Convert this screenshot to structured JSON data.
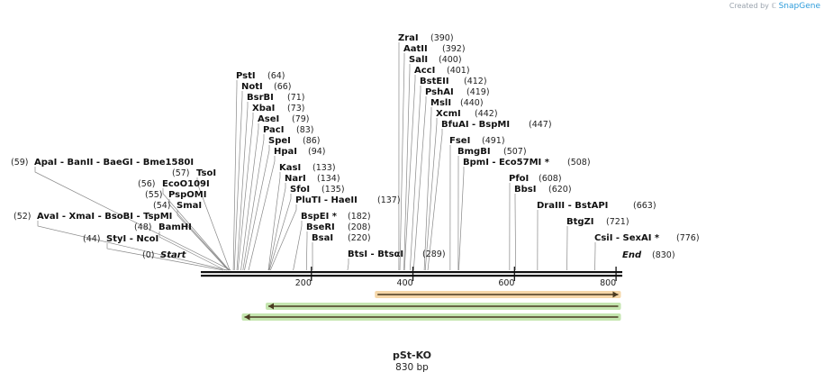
{
  "credit": {
    "prefix": "Created by",
    "brand": "SnapGene"
  },
  "map": {
    "name": "pSt-KO",
    "length_label": "830 bp",
    "length": 830,
    "start_label": "Start",
    "end_label": "End",
    "start_pos": "(0)",
    "end_pos": "(830)",
    "ticks": [
      "200",
      "400",
      "600",
      "800"
    ],
    "tick_values": [
      200,
      400,
      600,
      800
    ]
  },
  "sites": [
    {
      "text": "StyI  - NcoI",
      "pos": "(44)",
      "bp": 44
    },
    {
      "text": "BamHI",
      "pos": "(48)",
      "bp": 48
    },
    {
      "text": "AvaI  - XmaI  - BsoBI  - TspMI",
      "pos": "(52)",
      "bp": 52
    },
    {
      "text": "SmaI",
      "pos": "(54)",
      "bp": 54
    },
    {
      "text": "PspOMI",
      "pos": "(55)",
      "bp": 55
    },
    {
      "text": "EcoO109I",
      "pos": "(56)",
      "bp": 56
    },
    {
      "text": "TsoI",
      "pos": "(57)",
      "bp": 57
    },
    {
      "text": "ApaI  - BanII  - BaeGI  - Bme1580I",
      "pos": "(59)",
      "bp": 59
    },
    {
      "text": "PstI",
      "pos": "(64)",
      "bp": 64
    },
    {
      "text": "NotI",
      "pos": "(66)",
      "bp": 66
    },
    {
      "text": "BsrBI",
      "pos": "(71)",
      "bp": 71
    },
    {
      "text": "XbaI",
      "pos": "(73)",
      "bp": 73
    },
    {
      "text": "AseI",
      "pos": "(79)",
      "bp": 79
    },
    {
      "text": "PacI",
      "pos": "(83)",
      "bp": 83
    },
    {
      "text": "SpeI",
      "pos": "(86)",
      "bp": 86
    },
    {
      "text": "HpaI",
      "pos": "(94)",
      "bp": 94
    },
    {
      "text": "KasI",
      "pos": "(133)",
      "bp": 133
    },
    {
      "text": "NarI",
      "pos": "(134)",
      "bp": 134
    },
    {
      "text": "SfoI",
      "pos": "(135)",
      "bp": 135
    },
    {
      "text": "PluTI  - HaeII",
      "pos": "(137)",
      "bp": 137
    },
    {
      "text": "BspEI *",
      "pos": "(182)",
      "bp": 182
    },
    {
      "text": "BseRI",
      "pos": "(208)",
      "bp": 208
    },
    {
      "text": "BsaI",
      "pos": "(220)",
      "bp": 220
    },
    {
      "text": "BtsI  - BtsαI",
      "pos": "(289)",
      "bp": 289
    },
    {
      "text": "ZraI",
      "pos": "(390)",
      "bp": 390
    },
    {
      "text": "AatII",
      "pos": "(392)",
      "bp": 392
    },
    {
      "text": "SalI",
      "pos": "(400)",
      "bp": 400
    },
    {
      "text": "AccI",
      "pos": "(401)",
      "bp": 401
    },
    {
      "text": "BstEII",
      "pos": "(412)",
      "bp": 412
    },
    {
      "text": "PshAI",
      "pos": "(419)",
      "bp": 419
    },
    {
      "text": "MslI",
      "pos": "(440)",
      "bp": 440
    },
    {
      "text": "XcmI",
      "pos": "(442)",
      "bp": 442
    },
    {
      "text": "BfuAI  - BspMI",
      "pos": "(447)",
      "bp": 447
    },
    {
      "text": "FseI",
      "pos": "(491)",
      "bp": 491
    },
    {
      "text": "BmgBI",
      "pos": "(507)",
      "bp": 507
    },
    {
      "text": "BpmI  - Eco57MI *",
      "pos": "(508)",
      "bp": 508
    },
    {
      "text": "PfoI",
      "pos": "(608)",
      "bp": 608
    },
    {
      "text": "BbsI",
      "pos": "(620)",
      "bp": 620
    },
    {
      "text": "DraIII  - BstAPI",
      "pos": "(663)",
      "bp": 663
    },
    {
      "text": "BtgZI",
      "pos": "(721)",
      "bp": 721
    },
    {
      "text": "CsiI  - SexAI *",
      "pos": "(776)",
      "bp": 776
    }
  ],
  "features": [
    {
      "start": 348,
      "end": 822,
      "direction": "forward",
      "color": "#e8a640"
    },
    {
      "start": 133,
      "end": 822,
      "direction": "reverse",
      "color": "#7ec850"
    },
    {
      "start": 86,
      "end": 822,
      "direction": "reverse",
      "color": "#7ec850"
    }
  ]
}
